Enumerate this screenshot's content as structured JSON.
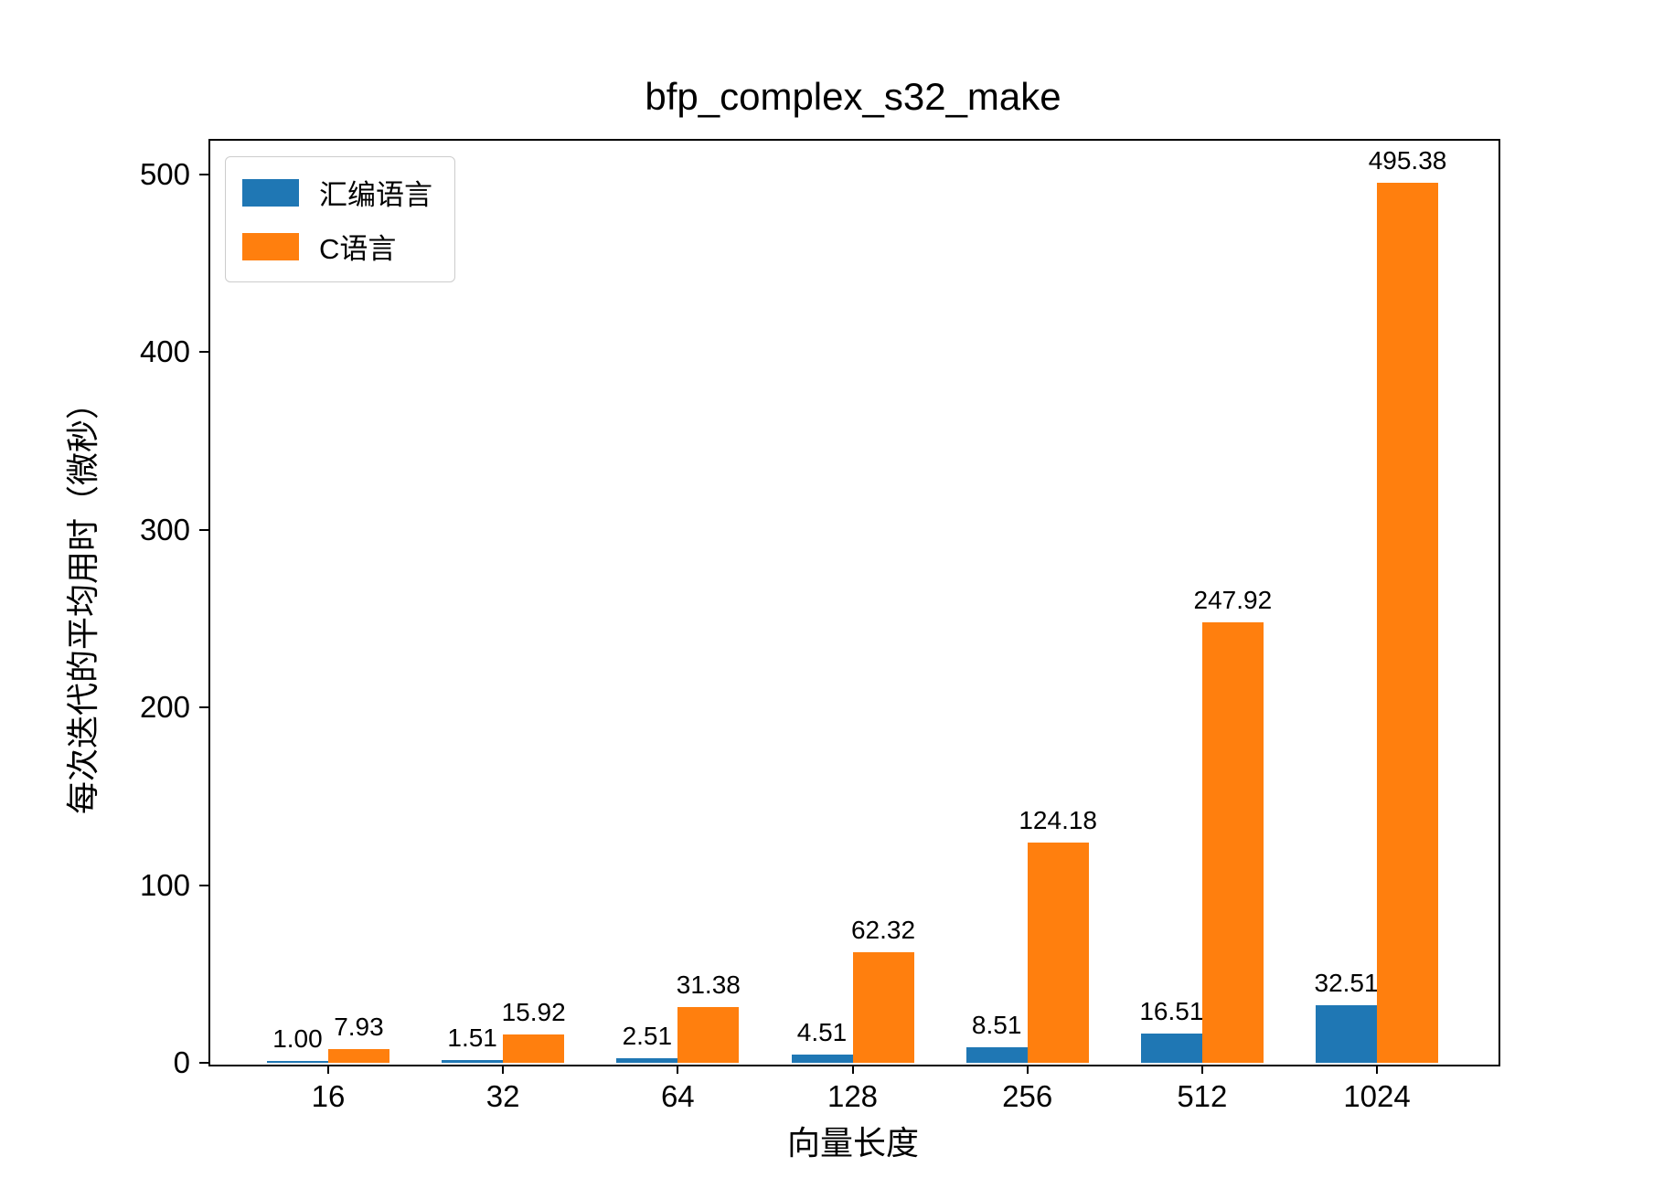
{
  "chart_data": {
    "type": "bar",
    "title": "bfp_complex_s32_make",
    "xlabel": "向量长度",
    "ylabel": "每次迭代的平均用时（微秒）",
    "categories": [
      "16",
      "32",
      "64",
      "128",
      "256",
      "512",
      "1024"
    ],
    "series": [
      {
        "name": "汇编语言",
        "color": "#1f77b4",
        "values": [
          1.0,
          1.51,
          2.51,
          4.51,
          8.51,
          16.51,
          32.51
        ],
        "value_labels": [
          "1.00",
          "1.51",
          "2.51",
          "4.51",
          "8.51",
          "16.51",
          "32.51"
        ]
      },
      {
        "name": "C语言",
        "color": "#ff7f0e",
        "values": [
          7.93,
          15.92,
          31.38,
          62.32,
          124.18,
          247.92,
          495.38
        ],
        "value_labels": [
          "7.93",
          "15.92",
          "31.38",
          "62.32",
          "124.18",
          "247.92",
          "495.38"
        ]
      }
    ],
    "ytick_labels": [
      "0",
      "100",
      "200",
      "300",
      "400",
      "500"
    ],
    "yticks": [
      0,
      100,
      200,
      300,
      400,
      500
    ],
    "ylim": [
      0,
      520
    ],
    "grid": false,
    "legend_position": "upper left",
    "bar_value_labels": true
  }
}
